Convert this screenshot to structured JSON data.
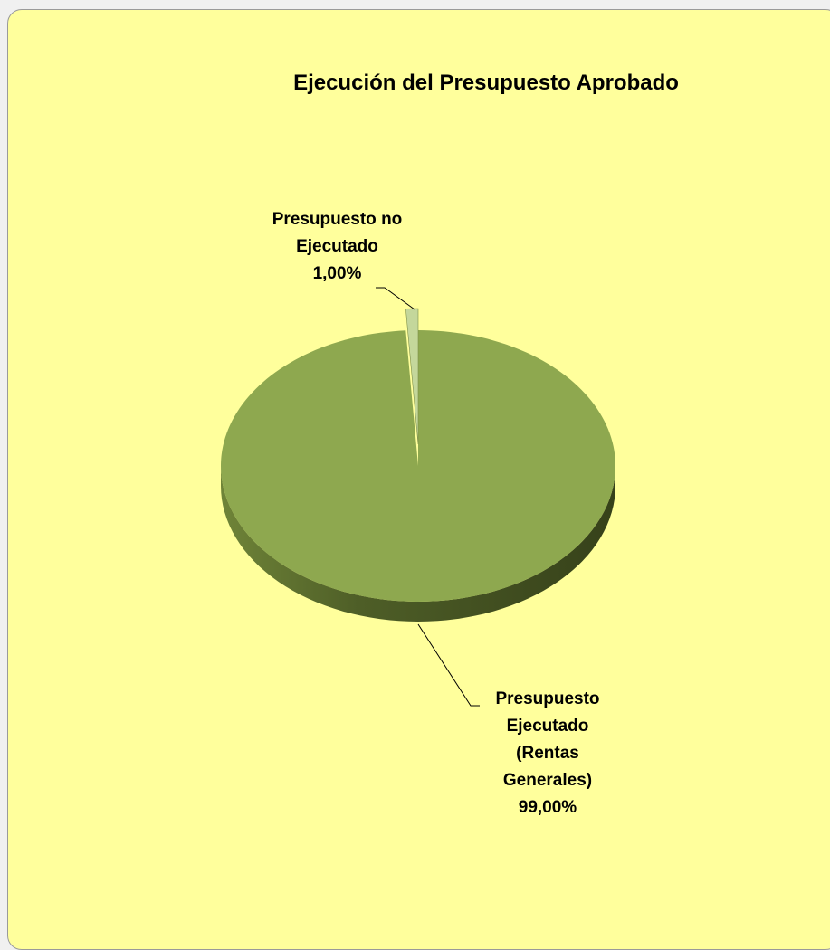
{
  "chart_data": {
    "type": "pie",
    "title": "Ejecución del Presupuesto Aprobado",
    "categories": [
      "Presupuesto no Ejecutado",
      "Presupuesto Ejecutado (Rentas Generales)"
    ],
    "values": [
      1,
      99
    ],
    "value_labels": [
      "1,00%",
      "99,00%"
    ],
    "colors": [
      "#c4d79b",
      "#8ea84f"
    ]
  }
}
